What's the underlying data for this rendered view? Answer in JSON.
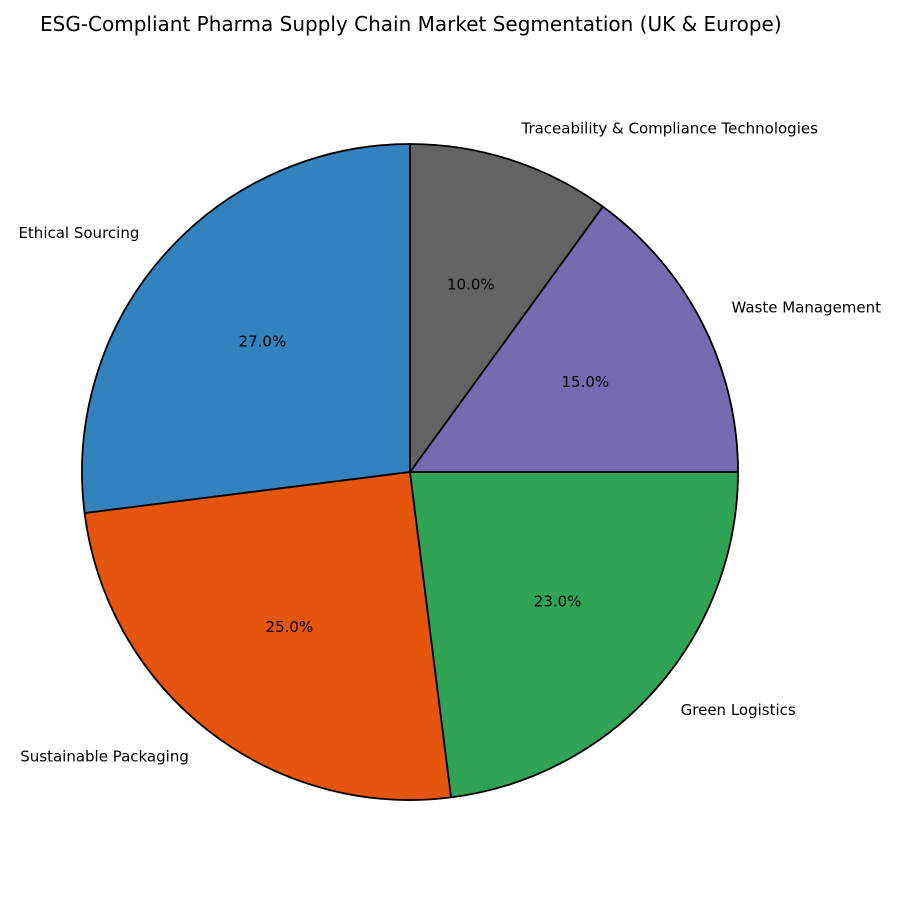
{
  "chart_data": {
    "type": "pie",
    "title": "ESG-Compliant Pharma Supply Chain Market Segmentation (UK & Europe)",
    "start_angle_deg": 90,
    "direction": "counterclockwise",
    "slices": [
      {
        "label": "Ethical Sourcing",
        "value": 27.0,
        "pct_label": "27.0%",
        "color": "#3182bd"
      },
      {
        "label": "Sustainable Packaging",
        "value": 25.0,
        "pct_label": "25.0%",
        "color": "#e6550d"
      },
      {
        "label": "Green Logistics",
        "value": 23.0,
        "pct_label": "23.0%",
        "color": "#31a354"
      },
      {
        "label": "Waste Management",
        "value": 15.0,
        "pct_label": "15.0%",
        "color": "#756bb1"
      },
      {
        "label": "Traceability & Compliance Technologies",
        "value": 10.0,
        "pct_label": "10.0%",
        "color": "#636363"
      }
    ],
    "edge_color": "#000000"
  }
}
